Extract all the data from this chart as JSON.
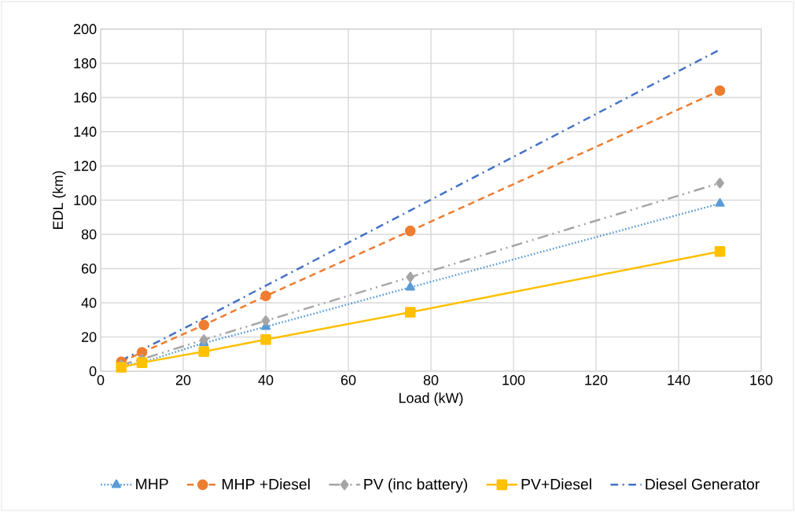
{
  "chart_data": {
    "type": "line",
    "xlabel": "Load (kW)",
    "ylabel": "EDL (km)",
    "x": [
      5,
      10,
      25,
      40,
      75,
      150
    ],
    "series": [
      {
        "name": "MHP",
        "color": "#5b9bd5",
        "marker": "triangle",
        "line_style": "dotted",
        "values": [
          3,
          5,
          16.5,
          26,
          49,
          98
        ]
      },
      {
        "name": "MHP +Diesel",
        "color": "#ed7d31",
        "marker": "circle",
        "line_style": "dashed",
        "values": [
          5.5,
          11,
          27,
          44,
          82,
          164
        ]
      },
      {
        "name": "PV (inc battery)",
        "color": "#a5a5a5",
        "marker": "diamond",
        "line_style": "dashdotdot",
        "values": [
          3.7,
          7,
          18.4,
          29.5,
          55,
          110
        ]
      },
      {
        "name": "PV+Diesel",
        "color": "#ffc000",
        "marker": "square",
        "line_style": "solid",
        "values": [
          2.3,
          5,
          11.5,
          18.5,
          34.5,
          70
        ]
      },
      {
        "name": "Diesel Generator",
        "color": "#4472c4",
        "marker": "none",
        "line_style": "dashdot",
        "values": [
          6.3,
          12.5,
          31,
          50,
          94,
          188
        ]
      }
    ],
    "xlim": [
      0,
      160
    ],
    "xticks": [
      0,
      20,
      40,
      60,
      80,
      100,
      120,
      140,
      160
    ],
    "ylim": [
      0,
      200
    ],
    "yticks": [
      0,
      20,
      40,
      60,
      80,
      100,
      120,
      140,
      160,
      180,
      200
    ],
    "grid": true,
    "legend": "bottom"
  }
}
